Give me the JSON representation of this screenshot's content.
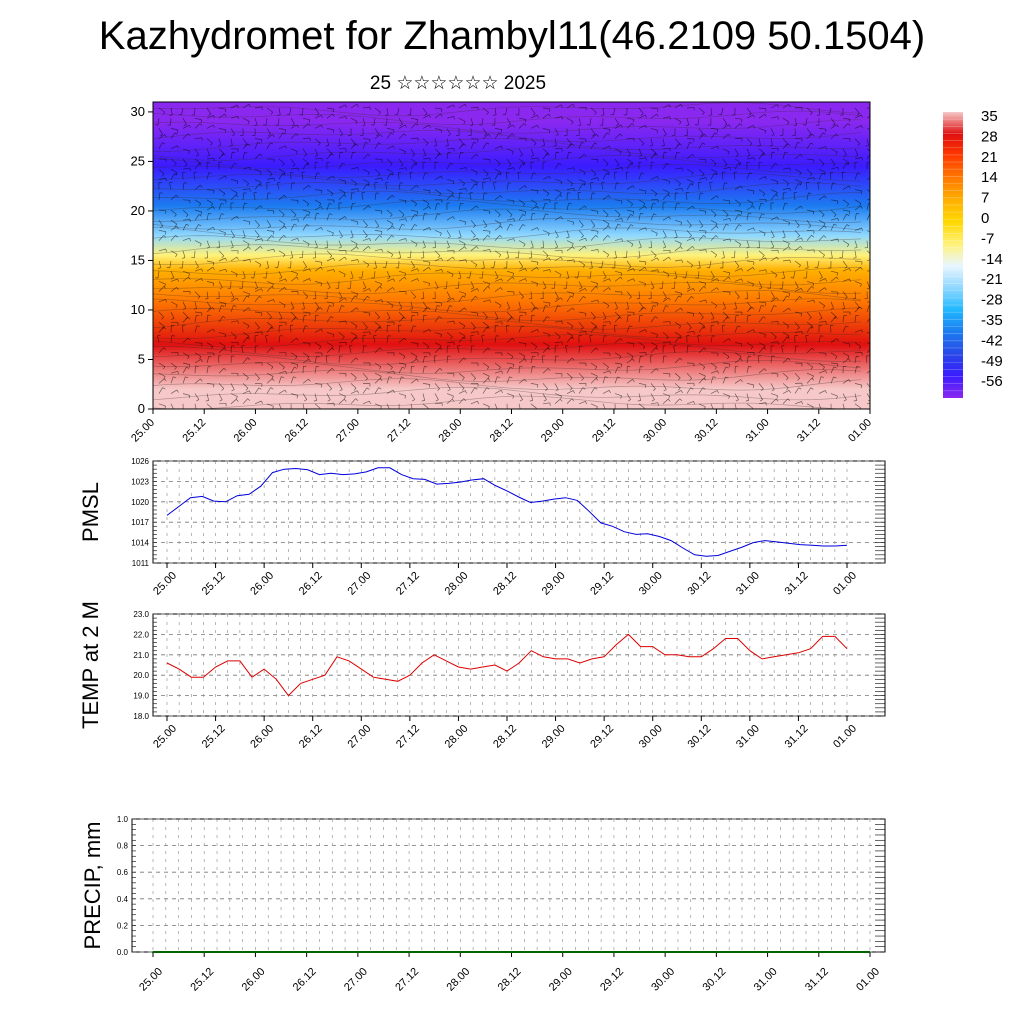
{
  "header": {
    "title": "Kazhydromet for Zhambyl11(46.2109 50.1504)",
    "subtitle": "25 ☆☆☆☆☆☆ 2025"
  },
  "colors": {
    "pmsl_line": "#0000dd",
    "temp_line": "#dd0000",
    "precip_line": "#006400"
  },
  "colorbar": {
    "labels": [
      "35",
      "28",
      "21",
      "14",
      "7",
      "0",
      "-7",
      "-14",
      "-21",
      "-28",
      "-35",
      "-42",
      "-49",
      "-56"
    ],
    "stops": [
      "#f6c8c8",
      "#e01010",
      "#ff3a00",
      "#ff7a00",
      "#ffb000",
      "#ffd800",
      "#fff27a",
      "#e8f6ff",
      "#8fd8ff",
      "#20b8ff",
      "#1c7cf0",
      "#2848e8",
      "#3a1cff",
      "#8a28f0"
    ]
  },
  "chart_data": [
    {
      "type": "heatmap",
      "name": "cross-section",
      "x_tick_labels": [
        "25.00",
        "25.12",
        "26.00",
        "26.12",
        "27.00",
        "27.12",
        "28.00",
        "28.12",
        "29.00",
        "29.12",
        "30.00",
        "30.12",
        "31.00",
        "31.12",
        "01.00"
      ],
      "y_tick_labels": [
        "0",
        "5",
        "10",
        "15",
        "20",
        "25",
        "30"
      ],
      "ylim": [
        0,
        31
      ],
      "value_bands": [
        {
          "level_from": 0,
          "level_to": 4,
          "value": 28
        },
        {
          "level_from": 4,
          "level_to": 9,
          "value": 21
        },
        {
          "level_from": 9,
          "level_to": 13,
          "value": 10
        },
        {
          "level_from": 13,
          "level_to": 15,
          "value": 0
        },
        {
          "level_from": 15,
          "level_to": 16,
          "value": -14
        },
        {
          "level_from": 16,
          "level_to": 19,
          "value": -24
        },
        {
          "level_from": 19,
          "level_to": 22,
          "value": -38
        },
        {
          "level_from": 22,
          "level_to": 27,
          "value": -52
        },
        {
          "level_from": 27,
          "level_to": 31,
          "value": -58
        }
      ]
    },
    {
      "type": "line",
      "ylabel": "PMSL",
      "ylim": [
        1011,
        1026
      ],
      "y_tick_labels": [
        "1011",
        "1014",
        "1017",
        "1020",
        "1023",
        "1026"
      ],
      "x_tick_labels": [
        "25.00",
        "25.12",
        "26.00",
        "26.12",
        "27.00",
        "27.12",
        "28.00",
        "28.12",
        "29.00",
        "29.12",
        "30.00",
        "30.12",
        "31.00",
        "31.12",
        "01.00"
      ],
      "values": [
        1018.0,
        1019.3,
        1020.6,
        1020.8,
        1020.1,
        1020.0,
        1020.9,
        1021.1,
        1022.3,
        1024.3,
        1024.8,
        1024.9,
        1024.7,
        1024.0,
        1024.2,
        1024.0,
        1024.1,
        1024.4,
        1025.0,
        1025.0,
        1024.0,
        1023.4,
        1023.3,
        1022.6,
        1022.7,
        1022.9,
        1023.2,
        1023.4,
        1022.4,
        1021.6,
        1020.7,
        1019.9,
        1020.1,
        1020.4,
        1020.6,
        1020.2,
        1018.6,
        1016.9,
        1016.4,
        1015.6,
        1015.2,
        1015.3,
        1014.9,
        1014.3,
        1013.2,
        1012.2,
        1012.0,
        1012.1,
        1012.7,
        1013.3,
        1014.0,
        1014.3,
        1014.1,
        1013.9,
        1013.7,
        1013.6,
        1013.5,
        1013.5,
        1013.6
      ]
    },
    {
      "type": "line",
      "ylabel": "TEMP at 2 M",
      "ylim": [
        18.0,
        23.0
      ],
      "y_tick_labels": [
        "18.0",
        "19.0",
        "20.0",
        "21.0",
        "22.0",
        "23.0"
      ],
      "x_tick_labels": [
        "25.00",
        "25.12",
        "26.00",
        "26.12",
        "27.00",
        "27.12",
        "28.00",
        "28.12",
        "29.00",
        "29.12",
        "30.00",
        "30.12",
        "31.00",
        "31.12",
        "01.00"
      ],
      "values": [
        20.6,
        20.3,
        19.9,
        19.9,
        20.4,
        20.7,
        20.7,
        19.9,
        20.3,
        19.8,
        19.0,
        19.6,
        19.8,
        20.0,
        20.9,
        20.7,
        20.3,
        19.9,
        19.8,
        19.7,
        20.0,
        20.6,
        21.0,
        20.7,
        20.4,
        20.3,
        20.4,
        20.5,
        20.2,
        20.6,
        21.2,
        20.9,
        20.8,
        20.8,
        20.6,
        20.8,
        20.9,
        21.5,
        22.0,
        21.4,
        21.4,
        21.0,
        21.0,
        20.9,
        20.9,
        21.3,
        21.8,
        21.8,
        21.2,
        20.8,
        20.9,
        21.0,
        21.1,
        21.3,
        21.9,
        21.9,
        21.3
      ]
    },
    {
      "type": "line",
      "ylabel": "PRECIP, mm",
      "ylim": [
        0.0,
        1.0
      ],
      "y_tick_labels": [
        "0.0",
        "0.2",
        "0.4",
        "0.6",
        "0.8",
        "1.0"
      ],
      "x_tick_labels": [
        "25.00",
        "25.12",
        "26.00",
        "26.12",
        "27.00",
        "27.12",
        "28.00",
        "28.12",
        "29.00",
        "29.12",
        "30.00",
        "30.12",
        "31.00",
        "31.12",
        "01.00"
      ],
      "values": [
        0,
        0,
        0,
        0,
        0,
        0,
        0,
        0,
        0,
        0,
        0,
        0,
        0,
        0,
        0,
        0,
        0,
        0,
        0,
        0,
        0,
        0,
        0,
        0,
        0,
        0,
        0,
        0,
        0,
        0,
        0,
        0,
        0,
        0,
        0,
        0,
        0,
        0,
        0,
        0,
        0,
        0,
        0,
        0,
        0,
        0,
        0,
        0,
        0,
        0,
        0,
        0,
        0,
        0,
        0,
        0,
        0
      ]
    }
  ]
}
